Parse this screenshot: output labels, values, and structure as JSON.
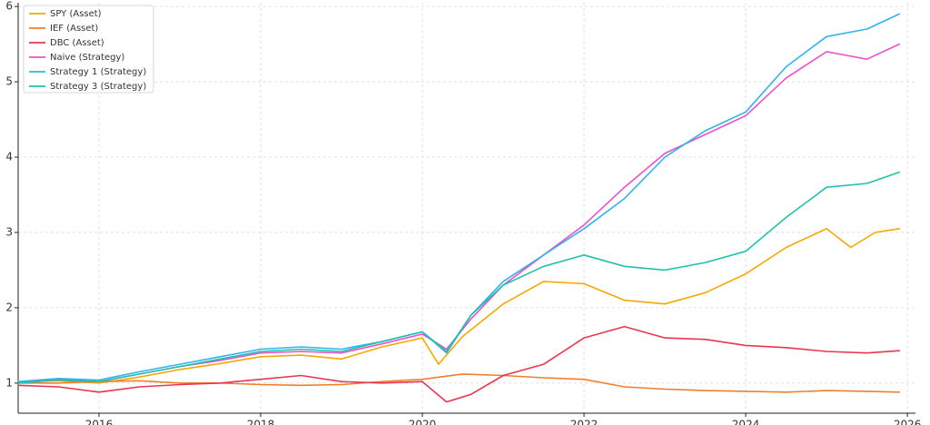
{
  "chart_data": {
    "type": "line",
    "title": "",
    "xlabel": "",
    "ylabel": "",
    "xlim": [
      2015.0,
      2026.1
    ],
    "ylim": [
      0.6,
      6.05
    ],
    "grid": true,
    "legend_position": "top-left",
    "x_ticks": [
      2016,
      2018,
      2020,
      2022,
      2024,
      2026
    ],
    "x_tick_labels": [
      "2016",
      "2018",
      "2020",
      "2022",
      "2024",
      "2026"
    ],
    "y_ticks": [
      1,
      2,
      3,
      4,
      5,
      6
    ],
    "y_tick_labels": [
      "1",
      "2",
      "3",
      "4",
      "5",
      "6"
    ],
    "series": [
      {
        "name": "SPY (Asset)",
        "color": "#f5a800",
        "points": [
          [
            2015.0,
            1.02
          ],
          [
            2015.5,
            1.03
          ],
          [
            2016.0,
            1.0
          ],
          [
            2016.5,
            1.08
          ],
          [
            2017.0,
            1.18
          ],
          [
            2017.5,
            1.26
          ],
          [
            2018.0,
            1.35
          ],
          [
            2018.5,
            1.37
          ],
          [
            2019.0,
            1.32
          ],
          [
            2019.5,
            1.48
          ],
          [
            2020.0,
            1.6
          ],
          [
            2020.2,
            1.25
          ],
          [
            2020.5,
            1.62
          ],
          [
            2021.0,
            2.05
          ],
          [
            2021.5,
            2.35
          ],
          [
            2022.0,
            2.32
          ],
          [
            2022.5,
            2.1
          ],
          [
            2023.0,
            2.05
          ],
          [
            2023.5,
            2.2
          ],
          [
            2024.0,
            2.45
          ],
          [
            2024.5,
            2.8
          ],
          [
            2025.0,
            3.05
          ],
          [
            2025.3,
            2.8
          ],
          [
            2025.6,
            3.0
          ],
          [
            2025.9,
            3.05
          ]
        ]
      },
      {
        "name": "IEF (Asset)",
        "color": "#f07f2d",
        "points": [
          [
            2015.0,
            1.0
          ],
          [
            2015.5,
            1.0
          ],
          [
            2016.0,
            1.02
          ],
          [
            2016.5,
            1.03
          ],
          [
            2017.0,
            1.0
          ],
          [
            2017.5,
            1.0
          ],
          [
            2018.0,
            0.98
          ],
          [
            2018.5,
            0.97
          ],
          [
            2019.0,
            0.98
          ],
          [
            2019.5,
            1.02
          ],
          [
            2020.0,
            1.05
          ],
          [
            2020.5,
            1.12
          ],
          [
            2021.0,
            1.1
          ],
          [
            2021.5,
            1.07
          ],
          [
            2022.0,
            1.05
          ],
          [
            2022.5,
            0.95
          ],
          [
            2023.0,
            0.92
          ],
          [
            2023.5,
            0.9
          ],
          [
            2024.0,
            0.89
          ],
          [
            2024.5,
            0.88
          ],
          [
            2025.0,
            0.9
          ],
          [
            2025.5,
            0.89
          ],
          [
            2025.9,
            0.88
          ]
        ]
      },
      {
        "name": "DBC (Asset)",
        "color": "#e8364f",
        "points": [
          [
            2015.0,
            0.97
          ],
          [
            2015.5,
            0.95
          ],
          [
            2016.0,
            0.88
          ],
          [
            2016.5,
            0.95
          ],
          [
            2017.0,
            0.98
          ],
          [
            2017.5,
            1.0
          ],
          [
            2018.0,
            1.05
          ],
          [
            2018.5,
            1.1
          ],
          [
            2019.0,
            1.02
          ],
          [
            2019.5,
            1.0
          ],
          [
            2020.0,
            1.02
          ],
          [
            2020.3,
            0.75
          ],
          [
            2020.6,
            0.85
          ],
          [
            2021.0,
            1.1
          ],
          [
            2021.5,
            1.25
          ],
          [
            2022.0,
            1.6
          ],
          [
            2022.5,
            1.75
          ],
          [
            2023.0,
            1.6
          ],
          [
            2023.5,
            1.58
          ],
          [
            2024.0,
            1.5
          ],
          [
            2024.5,
            1.47
          ],
          [
            2025.0,
            1.42
          ],
          [
            2025.5,
            1.4
          ],
          [
            2025.9,
            1.43
          ]
        ]
      },
      {
        "name": "Naive (Strategy)",
        "color": "#ef4fc8",
        "points": [
          [
            2015.0,
            1.0
          ],
          [
            2015.5,
            1.05
          ],
          [
            2016.0,
            1.02
          ],
          [
            2016.5,
            1.12
          ],
          [
            2017.0,
            1.22
          ],
          [
            2017.5,
            1.3
          ],
          [
            2018.0,
            1.4
          ],
          [
            2018.5,
            1.42
          ],
          [
            2019.0,
            1.4
          ],
          [
            2019.5,
            1.52
          ],
          [
            2020.0,
            1.65
          ],
          [
            2020.3,
            1.45
          ],
          [
            2020.6,
            1.85
          ],
          [
            2021.0,
            2.3
          ],
          [
            2021.5,
            2.7
          ],
          [
            2022.0,
            3.1
          ],
          [
            2022.5,
            3.6
          ],
          [
            2023.0,
            4.05
          ],
          [
            2023.5,
            4.3
          ],
          [
            2024.0,
            4.55
          ],
          [
            2024.5,
            5.05
          ],
          [
            2025.0,
            5.4
          ],
          [
            2025.5,
            5.3
          ],
          [
            2025.9,
            5.5
          ]
        ]
      },
      {
        "name": "Strategy 1 (Strategy)",
        "color": "#2eb4f0",
        "points": [
          [
            2015.0,
            1.02
          ],
          [
            2015.5,
            1.06
          ],
          [
            2016.0,
            1.04
          ],
          [
            2016.5,
            1.15
          ],
          [
            2017.0,
            1.25
          ],
          [
            2017.5,
            1.35
          ],
          [
            2018.0,
            1.45
          ],
          [
            2018.5,
            1.48
          ],
          [
            2019.0,
            1.45
          ],
          [
            2019.5,
            1.55
          ],
          [
            2020.0,
            1.68
          ],
          [
            2020.3,
            1.4
          ],
          [
            2020.6,
            1.9
          ],
          [
            2021.0,
            2.35
          ],
          [
            2021.5,
            2.7
          ],
          [
            2022.0,
            3.05
          ],
          [
            2022.5,
            3.45
          ],
          [
            2023.0,
            4.0
          ],
          [
            2023.5,
            4.35
          ],
          [
            2024.0,
            4.6
          ],
          [
            2024.5,
            5.2
          ],
          [
            2025.0,
            5.6
          ],
          [
            2025.5,
            5.7
          ],
          [
            2025.9,
            5.9
          ]
        ]
      },
      {
        "name": "Strategy 3 (Strategy)",
        "color": "#1ec2ad",
        "points": [
          [
            2015.0,
            1.0
          ],
          [
            2015.5,
            1.04
          ],
          [
            2016.0,
            1.02
          ],
          [
            2016.5,
            1.12
          ],
          [
            2017.0,
            1.22
          ],
          [
            2017.5,
            1.32
          ],
          [
            2018.0,
            1.42
          ],
          [
            2018.5,
            1.45
          ],
          [
            2019.0,
            1.42
          ],
          [
            2019.5,
            1.55
          ],
          [
            2020.0,
            1.68
          ],
          [
            2020.3,
            1.42
          ],
          [
            2020.6,
            1.9
          ],
          [
            2021.0,
            2.3
          ],
          [
            2021.5,
            2.55
          ],
          [
            2022.0,
            2.7
          ],
          [
            2022.5,
            2.55
          ],
          [
            2023.0,
            2.5
          ],
          [
            2023.5,
            2.6
          ],
          [
            2024.0,
            2.75
          ],
          [
            2024.5,
            3.2
          ],
          [
            2025.0,
            3.6
          ],
          [
            2025.5,
            3.65
          ],
          [
            2025.9,
            3.8
          ]
        ]
      }
    ]
  }
}
